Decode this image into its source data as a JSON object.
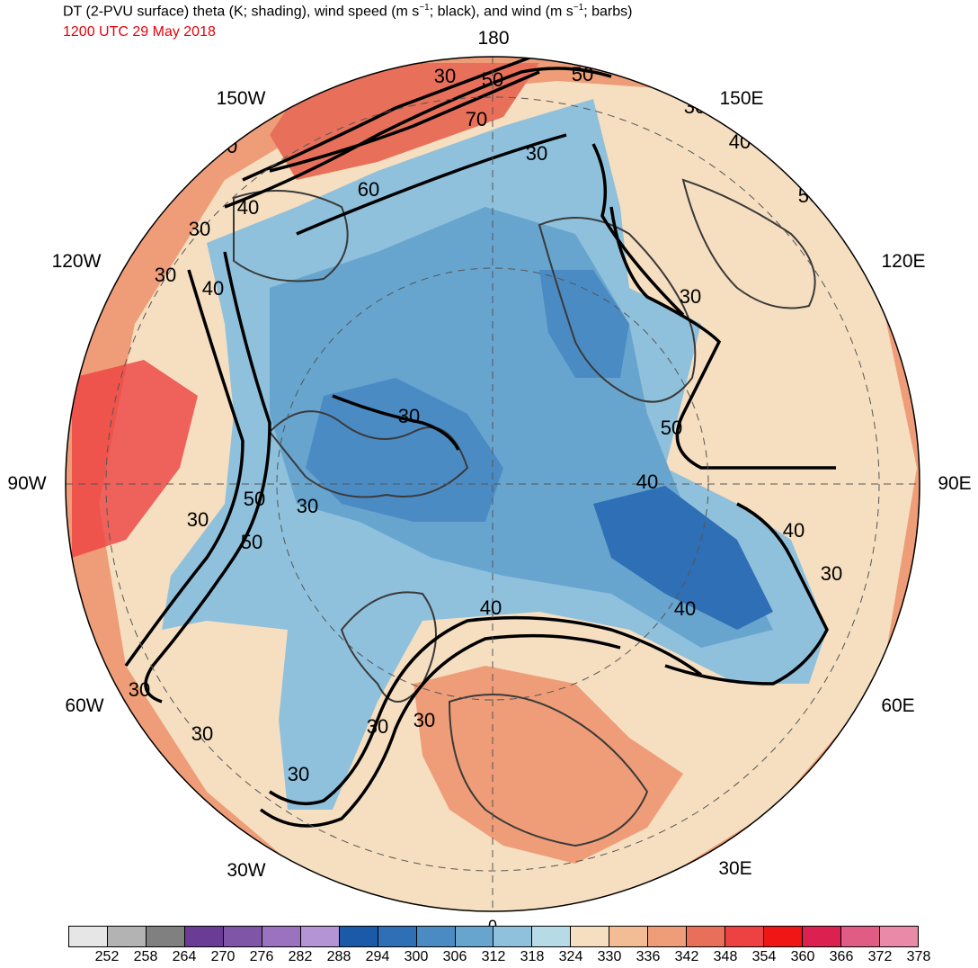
{
  "header": {
    "title_prefix": "DT (2-PVU surface) theta (K; shading), wind speed (m s",
    "title_mid": "; black), and wind (m s",
    "title_suffix": "; barbs)",
    "title_exp": "−1",
    "subtitle": "1200 UTC 29 May 2018"
  },
  "map": {
    "projection": "north-polar-stereographic",
    "center_longitude_bottom": "0",
    "longitude_labels": [
      {
        "text": "180",
        "lon": 180
      },
      {
        "text": "150E",
        "lon": 150
      },
      {
        "text": "120E",
        "lon": 120
      },
      {
        "text": "90E",
        "lon": 90
      },
      {
        "text": "60E",
        "lon": 60
      },
      {
        "text": "30E",
        "lon": 30
      },
      {
        "text": "0",
        "lon": 0
      },
      {
        "text": "30W",
        "lon": -30
      },
      {
        "text": "60W",
        "lon": -60
      },
      {
        "text": "90W",
        "lon": -90
      },
      {
        "text": "120W",
        "lon": -120
      },
      {
        "text": "150W",
        "lon": -150
      }
    ],
    "contour_labels": [
      "30",
      "50",
      "50",
      "70",
      "30",
      "60",
      "40",
      "30",
      "30",
      "40",
      "30",
      "30",
      "40",
      "50",
      "30",
      "50",
      "30",
      "40",
      "30",
      "50",
      "30",
      "50",
      "40",
      "40",
      "30",
      "40",
      "30",
      "30",
      "30",
      "30",
      "30",
      "40",
      "30"
    ],
    "land_color": "#3a3a3a"
  },
  "colorbar": {
    "levels": [
      "252",
      "258",
      "264",
      "270",
      "276",
      "282",
      "288",
      "294",
      "300",
      "306",
      "312",
      "318",
      "324",
      "330",
      "336",
      "342",
      "348",
      "354",
      "360",
      "366",
      "372",
      "378"
    ],
    "colors": [
      "#e6e6e6",
      "#b3b3b3",
      "#808080",
      "#6a3c96",
      "#7f55a8",
      "#9a72c0",
      "#b494d4",
      "#1a5aa8",
      "#2f6fb6",
      "#4b8bc4",
      "#67a5cf",
      "#8fc1dc",
      "#b6dbe6",
      "#f6dfc0",
      "#f2bd94",
      "#ee9d78",
      "#e8705a",
      "#ee4141",
      "#f01616",
      "#dc2050",
      "#e05c84",
      "#e88aa8"
    ]
  }
}
